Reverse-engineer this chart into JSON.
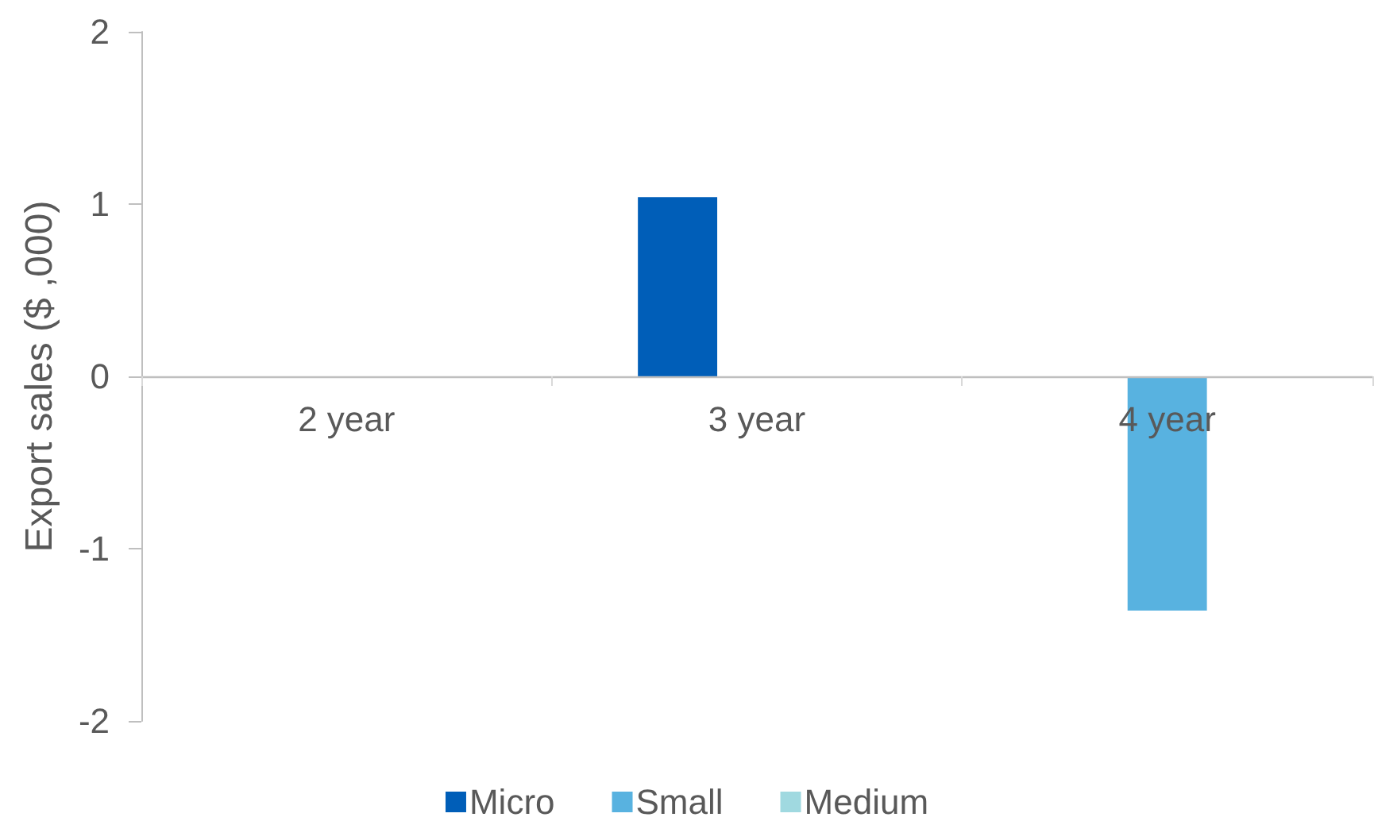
{
  "chart_data": {
    "type": "bar",
    "ylabel": "Export sales ($ ,000)",
    "categories": [
      "2 year",
      "3 year",
      "4 year"
    ],
    "series": [
      {
        "name": "Micro",
        "color": "#005eb8",
        "values": [
          null,
          1.04,
          null
        ]
      },
      {
        "name": "Small",
        "color": "#58b2e0",
        "values": [
          null,
          null,
          -1.36
        ]
      },
      {
        "name": "Medium",
        "color": "#a0d9e0",
        "values": [
          null,
          null,
          null
        ]
      }
    ],
    "ylim": [
      -2,
      2
    ],
    "yticks": [
      -2,
      -1,
      0,
      1,
      2
    ],
    "grid": false,
    "legend": "bottom"
  }
}
